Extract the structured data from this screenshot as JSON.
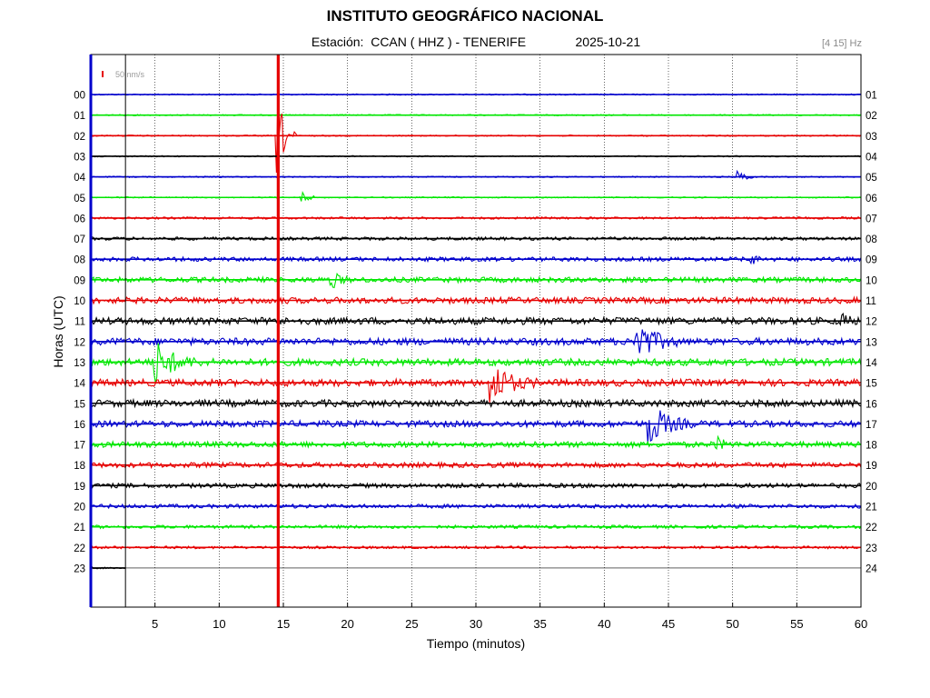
{
  "header": {
    "title": "INSTITUTO GEOGRÁFICO NACIONAL",
    "subtitle": "Estación:  CCAN ( HHZ ) - TENERIFE              2025-10-21",
    "filter": "[4 15] Hz"
  },
  "chart_data": {
    "type": "line",
    "title": "INSTITUTO GEOGRÁFICO NACIONAL",
    "xlabel": "Tiempo (minutos)",
    "ylabel": "Horas (UTC)",
    "xlim": [
      0,
      60
    ],
    "x_ticks": [
      "5",
      "10",
      "15",
      "20",
      "25",
      "30",
      "35",
      "40",
      "45",
      "50",
      "55",
      "60"
    ],
    "x_tick_values": [
      5,
      10,
      15,
      20,
      25,
      30,
      35,
      40,
      45,
      50,
      55,
      60
    ],
    "left_labels": [
      "00",
      "01",
      "02",
      "03",
      "04",
      "05",
      "06",
      "07",
      "08",
      "09",
      "10",
      "11",
      "12",
      "13",
      "14",
      "15",
      "16",
      "17",
      "18",
      "19",
      "20",
      "21",
      "22",
      "23"
    ],
    "right_labels": [
      "01",
      "02",
      "03",
      "04",
      "05",
      "06",
      "07",
      "08",
      "09",
      "10",
      "11",
      "12",
      "13",
      "14",
      "15",
      "16",
      "17",
      "18",
      "19",
      "20",
      "21",
      "22",
      "23",
      "24"
    ],
    "trace_colors": [
      "#0000cc",
      "#00e600",
      "#e60000",
      "#000000"
    ],
    "current_time_minute": 2.7,
    "scale_bar": "50 nm/s",
    "grid": true,
    "events": [
      {
        "minute": 14.6,
        "hour": 2,
        "amplitude": "very large",
        "spans_full_height": true
      },
      {
        "minute": 16.5,
        "hour": 5,
        "amplitude": "small"
      },
      {
        "minute": 18.8,
        "hour": 9,
        "amplitude": "medium"
      },
      {
        "minute": 5.0,
        "hour": 13,
        "amplitude": "large"
      },
      {
        "minute": 31.2,
        "hour": 14,
        "amplitude": "large"
      },
      {
        "minute": 42.5,
        "hour": 12,
        "amplitude": "large"
      },
      {
        "minute": 43.5,
        "hour": 16,
        "amplitude": "large"
      },
      {
        "minute": 50.5,
        "hour": 4,
        "amplitude": "small"
      },
      {
        "minute": 51.3,
        "hour": 8,
        "amplitude": "small"
      },
      {
        "minute": 58.5,
        "hour": 11,
        "amplitude": "small"
      },
      {
        "minute": 48.8,
        "hour": 17,
        "amplitude": "small"
      }
    ]
  }
}
